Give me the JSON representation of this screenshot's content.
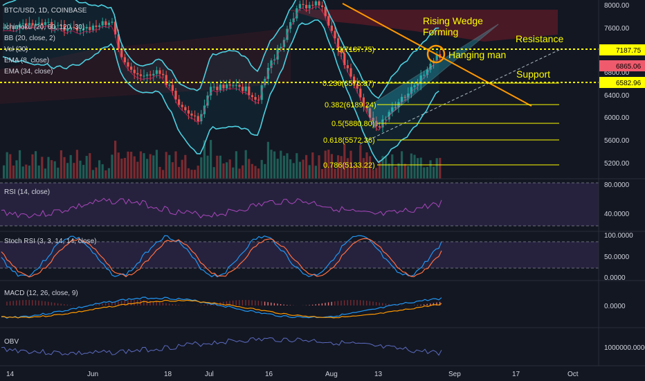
{
  "header": {
    "symbol": "BTC/USD, 1D, COINBASE",
    "indicators": [
      "Ichimoku (20, 60, 120, 30)",
      "BB (20, close, 2)",
      "Vol (20)",
      "EMA (8, close)",
      "EMA (34, close)"
    ]
  },
  "panes": {
    "rsi": "RSI (14, close)",
    "stoch": "Stoch RSI (3, 3, 14, 14, close)",
    "macd": "MACD (12, 26, close, 9)",
    "obv": "OBV"
  },
  "annotations": {
    "wedge": [
      "Rising Wedge",
      "Forming"
    ],
    "hanging": "Hanging man",
    "resistance": "Resistance",
    "support": "Support"
  },
  "fib_labels": [
    "0(7187.75)",
    "0.236(6576.87)",
    "0.382(6189.24)",
    "0.5(5880.80)",
    "0.618(5572.36)",
    "0.786(5133.22)"
  ],
  "price_axis": [
    "8000.00",
    "7600.00",
    "7200.00",
    "6800.00",
    "6400.00",
    "6000.00",
    "5600.00",
    "5200.00"
  ],
  "price_tags": [
    {
      "label": "7187.75",
      "bg": "#ffff00",
      "fg": "#000000"
    },
    {
      "label": "6865.06",
      "bg": "#ef5b6d",
      "fg": "#000000"
    },
    {
      "label": "6582.96",
      "bg": "#ffff00",
      "fg": "#000000"
    }
  ],
  "rsi_axis": [
    "80.0000",
    "40.0000"
  ],
  "stoch_axis": [
    "100.0000",
    "50.0000",
    "0.0000"
  ],
  "macd_axis": [
    "0.0000"
  ],
  "obv_axis": [
    "1000000.0000"
  ],
  "time_axis": [
    "14",
    "Jun",
    "18",
    "Jul",
    "16",
    "Aug",
    "13",
    "Sep",
    "17",
    "Oct"
  ],
  "colors": {
    "background": "#131722",
    "up_candle": "#26a69a",
    "down_candle": "#ef5350",
    "bollinger": "#4dd0e1",
    "fib": "#ffff00",
    "wedge": "#80deea",
    "trendline": "#ff9800",
    "annotation_text": "#ffff00"
  },
  "chart_data": {
    "type": "candlestick",
    "title": "BTC/USD, 1D, COINBASE",
    "ylim": [
      4900,
      8150
    ],
    "x_ticks": [
      "14",
      "Jun",
      "18",
      "Jul",
      "16",
      "Aug",
      "13",
      "Sep",
      "17",
      "Oct"
    ],
    "fibonacci": [
      {
        "level": 0,
        "price": 7187.75
      },
      {
        "level": 0.236,
        "price": 6576.87
      },
      {
        "level": 0.382,
        "price": 6189.24
      },
      {
        "level": 0.5,
        "price": 5880.8
      },
      {
        "level": 0.618,
        "price": 5572.36
      },
      {
        "level": 0.786,
        "price": 5133.22
      }
    ],
    "resistance": 7187.75,
    "support": 6582.96,
    "last_price": 6865.06
  }
}
